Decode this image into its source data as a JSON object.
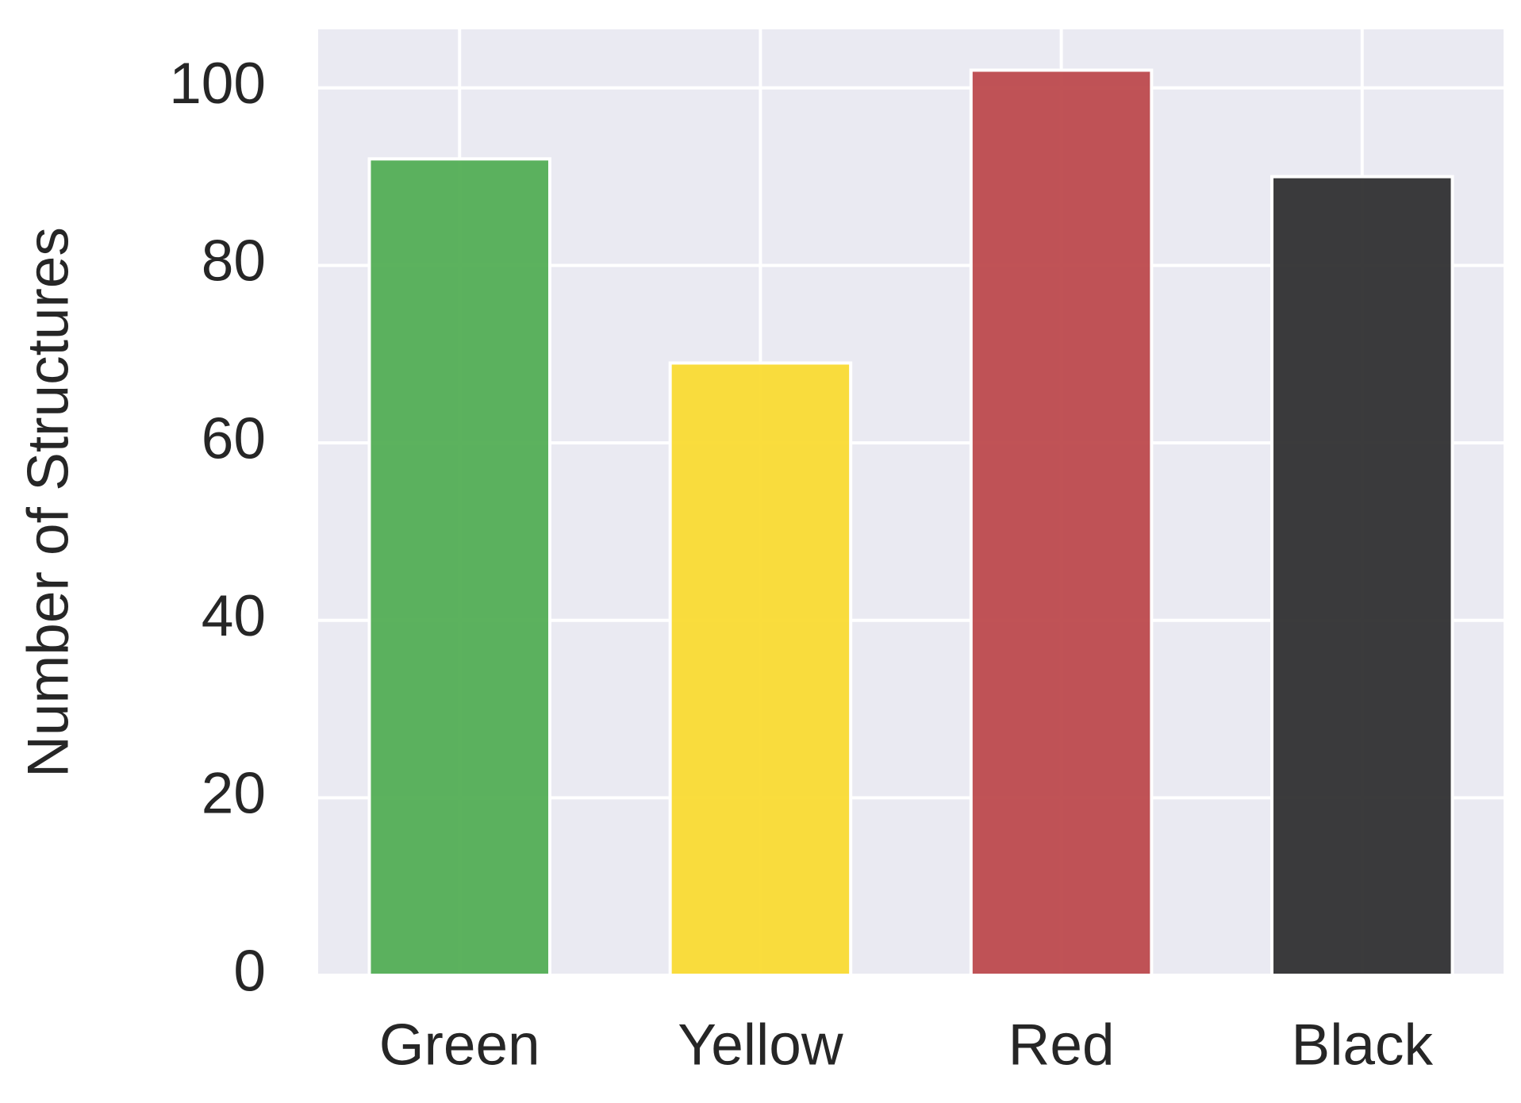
{
  "chart_data": {
    "type": "bar",
    "y_label": "Number of Structures",
    "categories": [
      "Green",
      "Yellow",
      "Red",
      "Black"
    ],
    "values": [
      92,
      69,
      102,
      90
    ],
    "colors": [
      "#53ae55",
      "#fadb33",
      "#bd4a4d",
      "#303031"
    ],
    "ylim": [
      0,
      106.6
    ],
    "yticks": [
      0,
      20,
      40,
      60,
      80,
      100
    ],
    "grid": true
  }
}
